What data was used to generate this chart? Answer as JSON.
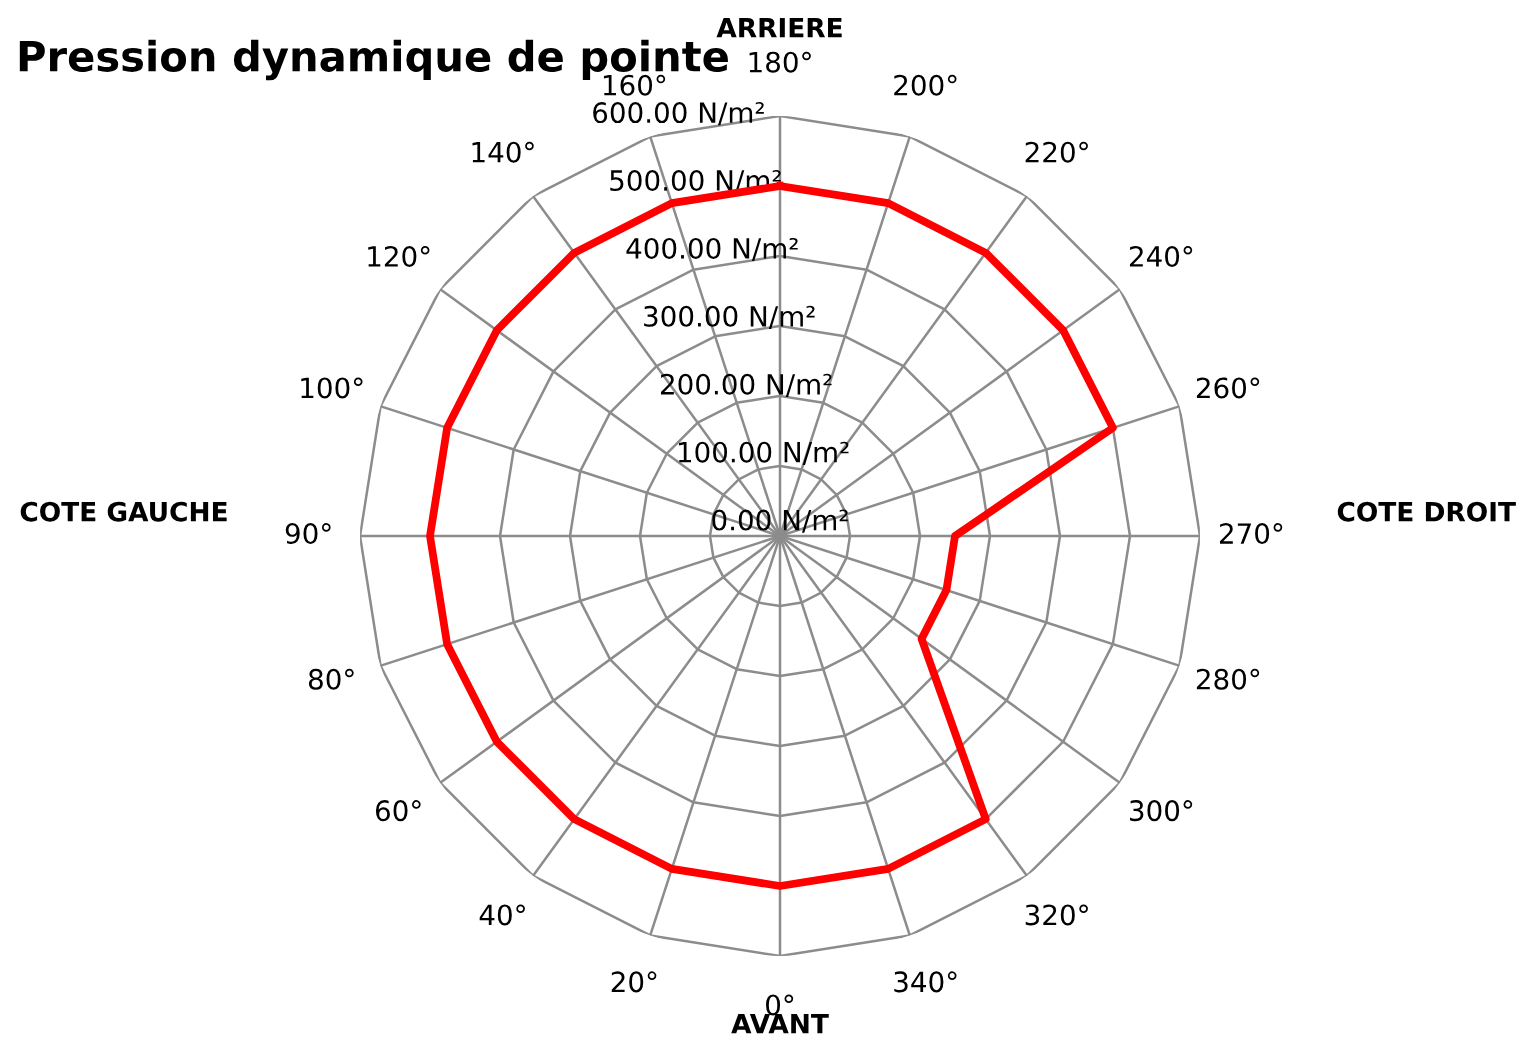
{
  "chart_data": {
    "type": "radar",
    "title": "Pression dynamique de pointe",
    "categories": [
      "180°",
      "200°",
      "220°",
      "240°",
      "260°",
      "270°",
      "280°",
      "300°",
      "320°",
      "340°",
      "0°",
      "20°",
      "40°",
      "60°",
      "80°",
      "90°",
      "100°",
      "120°",
      "140°",
      "160°"
    ],
    "series": [
      {
        "color": "#ff0000",
        "values": [
          500,
          500,
          500,
          500,
          500,
          250,
          250,
          250,
          500,
          500,
          500,
          500,
          500,
          500,
          500,
          500,
          500,
          500,
          500,
          500
        ]
      }
    ],
    "ylim": [
      0,
      600
    ],
    "yticks": [
      {
        "value": 0,
        "label": "0.00 N/m²"
      },
      {
        "value": 100,
        "label": "100.00 N/m²"
      },
      {
        "value": 200,
        "label": "200.00 N/m²"
      },
      {
        "value": 300,
        "label": "300.00 N/m²"
      },
      {
        "value": 400,
        "label": "400.00 N/m²"
      },
      {
        "value": 500,
        "label": "500.00 N/m²"
      },
      {
        "value": 600,
        "label": "600.00 N/m²"
      }
    ],
    "grid": true,
    "marker": "none",
    "line_style": "solid",
    "annotations": [
      "ARRIERE",
      "COTE DROIT",
      "AVANT",
      "COTE GAUCHE"
    ]
  }
}
